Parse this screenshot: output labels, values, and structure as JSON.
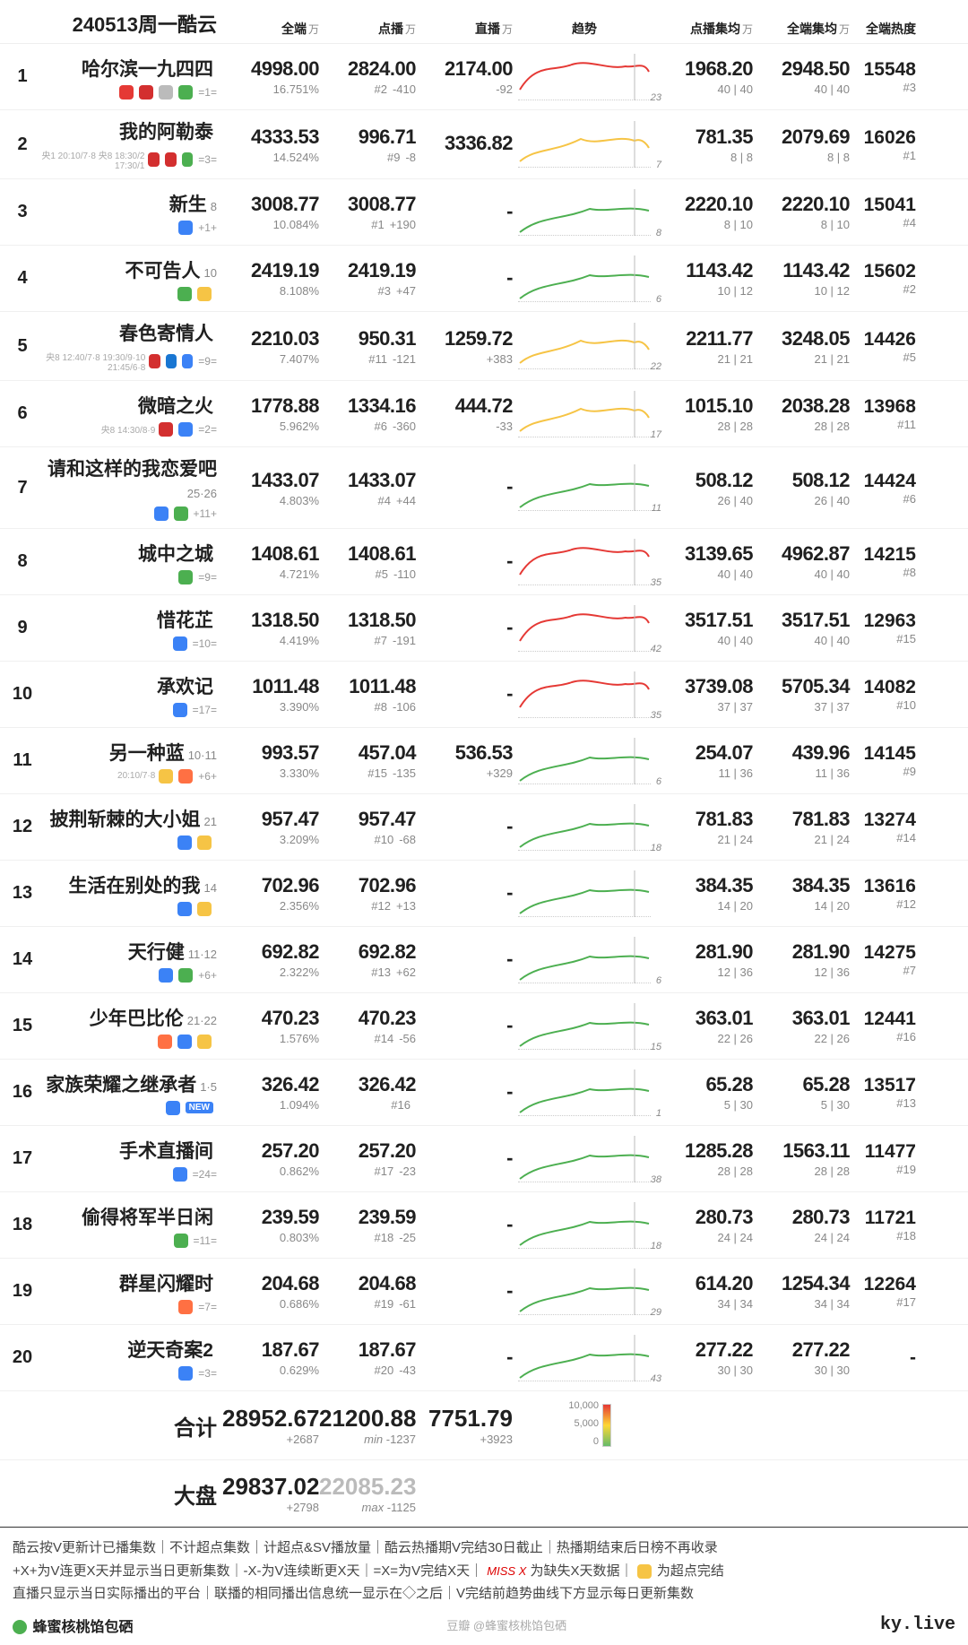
{
  "header": {
    "title": "240513周一酷云",
    "col_qd": "全端",
    "col_db": "点播",
    "col_zb": "直播",
    "col_trend": "趋势",
    "col_dbjj": "点播集均",
    "col_qdjj": "全端集均",
    "col_heat": "全端热度",
    "unit_wan": "万"
  },
  "trend_style": {
    "stroke_hi": "#e53935",
    "stroke_mid": "#f6c445",
    "stroke_lo": "#4caf50",
    "stroke_width": 2
  },
  "rows": [
    {
      "rank": 1,
      "name": "哈尔滨一九四四",
      "ep": "",
      "sub": "=1=",
      "plat": [
        "#e53935",
        "#d32f2f",
        "#bbb",
        "#4caf50"
      ],
      "qd": "4998.00",
      "qd_sub": "16.751%",
      "db": "2824.00",
      "db_rk": "#2",
      "db_d": "-410",
      "zb": "2174.00",
      "zb_d": "-92",
      "trend_ep": "23",
      "trend": "hi",
      "dbjj": "1968.20",
      "dbjj_sub": "40 | 40",
      "qdjj": "2948.50",
      "qdjj_sub": "40 | 40",
      "heat": "15548",
      "heat_sub": "#3"
    },
    {
      "rank": 2,
      "name": "我的阿勒泰",
      "ep": "",
      "sub": "=3=",
      "plat": [
        "#d32f2f",
        "#d32f2f",
        "#4caf50"
      ],
      "plat_txt": "央1 20:10/7·8  央8 18:30/2 17:30/1",
      "qd": "4333.53",
      "qd_sub": "14.524%",
      "db": "996.71",
      "db_rk": "#9",
      "db_d": "-8",
      "zb": "3336.82",
      "zb_d": "",
      "trend_ep": "7",
      "trend": "mid",
      "dbjj": "781.35",
      "dbjj_sub": "8 | 8",
      "qdjj": "2079.69",
      "qdjj_sub": "8 | 8",
      "heat": "16026",
      "heat_sub": "#1"
    },
    {
      "rank": 3,
      "name": "新生",
      "ep": "8",
      "sub": "+1+",
      "plat": [
        "#3b82f6"
      ],
      "qd": "3008.77",
      "qd_sub": "10.084%",
      "db": "3008.77",
      "db_rk": "#1",
      "db_d": "+190",
      "zb": "-",
      "zb_d": "",
      "trend_ep": "8",
      "trend": "lo",
      "dbjj": "2220.10",
      "dbjj_sub": "8 | 10",
      "qdjj": "2220.10",
      "qdjj_sub": "8 | 10",
      "heat": "15041",
      "heat_sub": "#4"
    },
    {
      "rank": 4,
      "name": "不可告人",
      "ep": "10",
      "sub": "",
      "plat": [
        "#4caf50",
        "#f6c445"
      ],
      "qd": "2419.19",
      "qd_sub": "8.108%",
      "db": "2419.19",
      "db_rk": "#3",
      "db_d": "+47",
      "zb": "-",
      "zb_d": "",
      "trend_ep": "6",
      "trend": "lo",
      "dbjj": "1143.42",
      "dbjj_sub": "10 | 12",
      "qdjj": "1143.42",
      "qdjj_sub": "10 | 12",
      "heat": "15602",
      "heat_sub": "#2"
    },
    {
      "rank": 5,
      "name": "春色寄情人",
      "ep": "",
      "sub": "=9=",
      "plat": [
        "#d32f2f",
        "#1976d2",
        "#3b82f6"
      ],
      "plat_txt": "央8 12:40/7·8  19:30/9·10 21:45/6·8",
      "qd": "2210.03",
      "qd_sub": "7.407%",
      "db": "950.31",
      "db_rk": "#11",
      "db_d": "-121",
      "zb": "1259.72",
      "zb_d": "+383",
      "trend_ep": "22",
      "trend": "mid",
      "dbjj": "2211.77",
      "dbjj_sub": "21 | 21",
      "qdjj": "3248.05",
      "qdjj_sub": "21 | 21",
      "heat": "14426",
      "heat_sub": "#5"
    },
    {
      "rank": 6,
      "name": "微暗之火",
      "ep": "",
      "sub": "=2=",
      "plat": [
        "#d32f2f",
        "#3b82f6"
      ],
      "plat_txt": "央8 14:30/8·9",
      "qd": "1778.88",
      "qd_sub": "5.962%",
      "db": "1334.16",
      "db_rk": "#6",
      "db_d": "-360",
      "zb": "444.72",
      "zb_d": "-33",
      "trend_ep": "17",
      "trend": "mid",
      "dbjj": "1015.10",
      "dbjj_sub": "28 | 28",
      "qdjj": "2038.28",
      "qdjj_sub": "28 | 28",
      "heat": "13968",
      "heat_sub": "#11"
    },
    {
      "rank": 7,
      "name": "请和这样的我恋爱吧",
      "ep": "25·26",
      "sub": "+11+",
      "plat": [
        "#3b82f6",
        "#4caf50"
      ],
      "qd": "1433.07",
      "qd_sub": "4.803%",
      "db": "1433.07",
      "db_rk": "#4",
      "db_d": "+44",
      "zb": "-",
      "zb_d": "",
      "trend_ep": "11",
      "trend": "lo",
      "dbjj": "508.12",
      "dbjj_sub": "26 | 40",
      "qdjj": "508.12",
      "qdjj_sub": "26 | 40",
      "heat": "14424",
      "heat_sub": "#6"
    },
    {
      "rank": 8,
      "name": "城中之城",
      "ep": "",
      "sub": "=9=",
      "plat": [
        "#4caf50"
      ],
      "qd": "1408.61",
      "qd_sub": "4.721%",
      "db": "1408.61",
      "db_rk": "#5",
      "db_d": "-110",
      "zb": "-",
      "zb_d": "",
      "trend_ep": "35",
      "trend": "hi",
      "dbjj": "3139.65",
      "dbjj_sub": "40 | 40",
      "qdjj": "4962.87",
      "qdjj_sub": "40 | 40",
      "heat": "14215",
      "heat_sub": "#8"
    },
    {
      "rank": 9,
      "name": "惜花芷",
      "ep": "",
      "sub": "=10=",
      "plat": [
        "#3b82f6"
      ],
      "qd": "1318.50",
      "qd_sub": "4.419%",
      "db": "1318.50",
      "db_rk": "#7",
      "db_d": "-191",
      "zb": "-",
      "zb_d": "",
      "trend_ep": "42",
      "trend": "hi",
      "dbjj": "3517.51",
      "dbjj_sub": "40 | 40",
      "qdjj": "3517.51",
      "qdjj_sub": "40 | 40",
      "heat": "12963",
      "heat_sub": "#15"
    },
    {
      "rank": 10,
      "name": "承欢记",
      "ep": "",
      "sub": "=17=",
      "plat": [
        "#3b82f6"
      ],
      "qd": "1011.48",
      "qd_sub": "3.390%",
      "db": "1011.48",
      "db_rk": "#8",
      "db_d": "-106",
      "zb": "-",
      "zb_d": "",
      "trend_ep": "35",
      "trend": "hi",
      "dbjj": "3739.08",
      "dbjj_sub": "37 | 37",
      "qdjj": "5705.34",
      "qdjj_sub": "37 | 37",
      "heat": "14082",
      "heat_sub": "#10"
    },
    {
      "rank": 11,
      "name": "另一种蓝",
      "ep": "10·11",
      "sub": "+6+",
      "plat": [
        "#f6c445",
        "#ff7043"
      ],
      "plat_txt": "20:10/7·8",
      "qd": "993.57",
      "qd_sub": "3.330%",
      "db": "457.04",
      "db_rk": "#15",
      "db_d": "-135",
      "zb": "536.53",
      "zb_d": "+329",
      "trend_ep": "6",
      "trend": "lo",
      "dbjj": "254.07",
      "dbjj_sub": "11 | 36",
      "qdjj": "439.96",
      "qdjj_sub": "11 | 36",
      "heat": "14145",
      "heat_sub": "#9"
    },
    {
      "rank": 12,
      "name": "披荆斩棘的大小姐",
      "ep": "21",
      "sub": "",
      "plat": [
        "#3b82f6",
        "#f6c445"
      ],
      "qd": "957.47",
      "qd_sub": "3.209%",
      "db": "957.47",
      "db_rk": "#10",
      "db_d": "-68",
      "zb": "-",
      "zb_d": "",
      "trend_ep": "18",
      "trend": "lo",
      "dbjj": "781.83",
      "dbjj_sub": "21 | 24",
      "qdjj": "781.83",
      "qdjj_sub": "21 | 24",
      "heat": "13274",
      "heat_sub": "#14"
    },
    {
      "rank": 13,
      "name": "生活在别处的我",
      "ep": "14",
      "sub": "",
      "plat": [
        "#3b82f6",
        "#f6c445"
      ],
      "qd": "702.96",
      "qd_sub": "2.356%",
      "db": "702.96",
      "db_rk": "#12",
      "db_d": "+13",
      "zb": "-",
      "zb_d": "",
      "trend_ep": "",
      "trend": "lo",
      "dbjj": "384.35",
      "dbjj_sub": "14 | 20",
      "qdjj": "384.35",
      "qdjj_sub": "14 | 20",
      "heat": "13616",
      "heat_sub": "#12"
    },
    {
      "rank": 14,
      "name": "天行健",
      "ep": "11·12",
      "sub": "+6+",
      "plat": [
        "#3b82f6",
        "#4caf50"
      ],
      "qd": "692.82",
      "qd_sub": "2.322%",
      "db": "692.82",
      "db_rk": "#13",
      "db_d": "+62",
      "zb": "-",
      "zb_d": "",
      "trend_ep": "6",
      "trend": "lo",
      "dbjj": "281.90",
      "dbjj_sub": "12 | 36",
      "qdjj": "281.90",
      "qdjj_sub": "12 | 36",
      "heat": "14275",
      "heat_sub": "#7"
    },
    {
      "rank": 15,
      "name": "少年巴比伦",
      "ep": "21·22",
      "sub": "",
      "plat": [
        "#ff7043",
        "#3b82f6",
        "#f6c445"
      ],
      "qd": "470.23",
      "qd_sub": "1.576%",
      "db": "470.23",
      "db_rk": "#14",
      "db_d": "-56",
      "zb": "-",
      "zb_d": "",
      "trend_ep": "15",
      "trend": "lo",
      "dbjj": "363.01",
      "dbjj_sub": "22 | 26",
      "qdjj": "363.01",
      "qdjj_sub": "22 | 26",
      "heat": "12441",
      "heat_sub": "#16"
    },
    {
      "rank": 16,
      "name": "家族荣耀之继承者",
      "ep": "1·5",
      "sub": "",
      "plat": [
        "#3b82f6"
      ],
      "new": true,
      "qd": "326.42",
      "qd_sub": "1.094%",
      "db": "326.42",
      "db_rk": "#16",
      "db_d": "",
      "zb": "-",
      "zb_d": "",
      "trend_ep": "1",
      "trend": "lo",
      "dbjj": "65.28",
      "dbjj_sub": "5 | 30",
      "qdjj": "65.28",
      "qdjj_sub": "5 | 30",
      "heat": "13517",
      "heat_sub": "#13"
    },
    {
      "rank": 17,
      "name": "手术直播间",
      "ep": "",
      "sub": "=24=",
      "plat": [
        "#3b82f6"
      ],
      "qd": "257.20",
      "qd_sub": "0.862%",
      "db": "257.20",
      "db_rk": "#17",
      "db_d": "-23",
      "zb": "-",
      "zb_d": "",
      "trend_ep": "38",
      "trend": "lo",
      "dbjj": "1285.28",
      "dbjj_sub": "28 | 28",
      "qdjj": "1563.11",
      "qdjj_sub": "28 | 28",
      "heat": "11477",
      "heat_sub": "#19"
    },
    {
      "rank": 18,
      "name": "偷得将军半日闲",
      "ep": "",
      "sub": "=11=",
      "plat": [
        "#4caf50"
      ],
      "qd": "239.59",
      "qd_sub": "0.803%",
      "db": "239.59",
      "db_rk": "#18",
      "db_d": "-25",
      "zb": "-",
      "zb_d": "",
      "trend_ep": "18",
      "trend": "lo",
      "dbjj": "280.73",
      "dbjj_sub": "24 | 24",
      "qdjj": "280.73",
      "qdjj_sub": "24 | 24",
      "heat": "11721",
      "heat_sub": "#18"
    },
    {
      "rank": 19,
      "name": "群星闪耀时",
      "ep": "",
      "sub": "=7=",
      "plat": [
        "#ff7043"
      ],
      "qd": "204.68",
      "qd_sub": "0.686%",
      "db": "204.68",
      "db_rk": "#19",
      "db_d": "-61",
      "zb": "-",
      "zb_d": "",
      "trend_ep": "29",
      "trend": "lo",
      "dbjj": "614.20",
      "dbjj_sub": "34 | 34",
      "qdjj": "1254.34",
      "qdjj_sub": "34 | 34",
      "heat": "12264",
      "heat_sub": "#17"
    },
    {
      "rank": 20,
      "name": "逆天奇案2",
      "ep": "",
      "sub": "=3=",
      "plat": [
        "#3b82f6"
      ],
      "qd": "187.67",
      "qd_sub": "0.629%",
      "db": "187.67",
      "db_rk": "#20",
      "db_d": "-43",
      "zb": "-",
      "zb_d": "",
      "trend_ep": "43",
      "trend": "lo",
      "dbjj": "277.22",
      "dbjj_sub": "30 | 30",
      "qdjj": "277.22",
      "qdjj_sub": "30 | 30",
      "heat": "-",
      "heat_sub": ""
    }
  ],
  "totals": {
    "label": "合计",
    "qd": "28952.67",
    "qd_d": "+2687",
    "db": "21200.88",
    "db_tag": "min",
    "db_d": "-1237",
    "zb": "7751.79",
    "zb_d": "+3923",
    "legend": {
      "t10": "10,000",
      "t5": "5,000",
      "t0": "0"
    }
  },
  "market": {
    "label": "大盘",
    "qd": "29837.02",
    "qd_d": "+2798",
    "db": "22085.23",
    "db_tag": "max",
    "db_d": "-1125"
  },
  "footer": {
    "l1": "酷云按V更新计已播集数｜不计超点集数｜计超点&SV播放量｜酷云热播期V完结30日截止｜热播期结束后日榜不再收录",
    "l2a": "+X+为V连更X天并显示当日更新集数｜-X-为V连续断更X天｜=X=为V完结X天｜",
    "l2miss": "MISS X",
    "l2b": " 为缺失X天数据｜",
    "l2c": " 为超点完结",
    "l3": "直播只显示当日实际播出的平台｜联播的相同播出信息统一显示在◇之后｜V完结前趋势曲线下方显示每日更新集数",
    "brand": "蜂蜜核桃馅包硒",
    "mid": "豆瓣 @蜂蜜核桃馅包硒",
    "site": "ky.live"
  }
}
